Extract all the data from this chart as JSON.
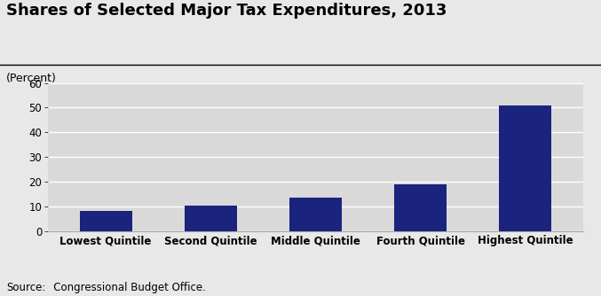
{
  "title": "Shares of Selected Major Tax Expenditures, 2013",
  "ylabel": "(Percent)",
  "categories": [
    "Lowest Quintile",
    "Second Quintile",
    "Middle Quintile",
    "Fourth Quintile",
    "Highest Quintile"
  ],
  "values": [
    8.0,
    10.4,
    13.5,
    18.7,
    51.0
  ],
  "bar_color": "#1a237e",
  "plot_bg_color": "#d9d9d9",
  "figure_bg_color": "#e8e8e8",
  "ylim": [
    0,
    60
  ],
  "yticks": [
    0,
    10,
    20,
    30,
    40,
    50,
    60
  ],
  "source_prefix": "Source:",
  "source_text": "   Congressional Budget Office.",
  "title_fontsize": 13,
  "ylabel_fontsize": 9,
  "tick_fontsize": 8.5,
  "source_fontsize": 8.5,
  "bar_width": 0.5
}
